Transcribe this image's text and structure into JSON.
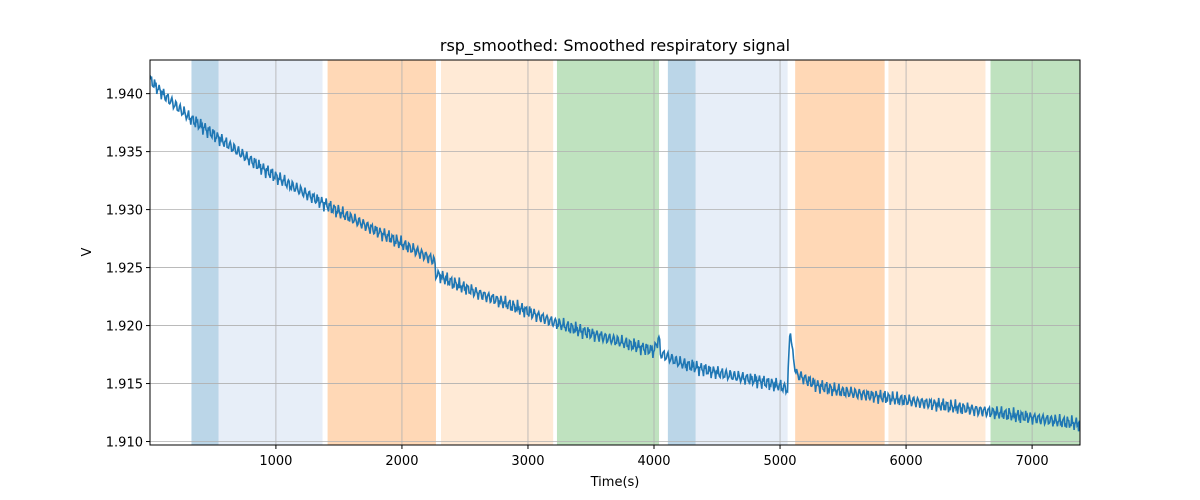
{
  "chart_data": {
    "type": "line",
    "title": "rsp_smoothed: Smoothed respiratory signal",
    "xlabel": "Time(s)",
    "ylabel": "V",
    "xlim": [
      1,
      7380
    ],
    "ylim": [
      1.9097,
      1.9429
    ],
    "xticks": [
      1000,
      2000,
      3000,
      4000,
      5000,
      6000,
      7000
    ],
    "xtick_labels": [
      "1000",
      "2000",
      "3000",
      "4000",
      "5000",
      "6000",
      "7000"
    ],
    "yticks": [
      1.91,
      1.915,
      1.92,
      1.925,
      1.93,
      1.935,
      1.94
    ],
    "ytick_labels": [
      "1.910",
      "1.915",
      "1.920",
      "1.925",
      "1.930",
      "1.935",
      "1.940"
    ],
    "grid": true,
    "series": [
      {
        "color": "#1f77b4",
        "points": [
          [
            1,
            1.9412
          ],
          [
            100,
            1.94
          ],
          [
            200,
            1.939
          ],
          [
            330,
            1.9378
          ],
          [
            500,
            1.9365
          ],
          [
            700,
            1.935
          ],
          [
            900,
            1.9335
          ],
          [
            1100,
            1.9322
          ],
          [
            1300,
            1.931
          ],
          [
            1500,
            1.9298
          ],
          [
            1700,
            1.9287
          ],
          [
            1900,
            1.9276
          ],
          [
            2100,
            1.9265
          ],
          [
            2260,
            1.9256
          ],
          [
            2265,
            1.9245
          ],
          [
            2400,
            1.9237
          ],
          [
            2600,
            1.9228
          ],
          [
            2800,
            1.922
          ],
          [
            3000,
            1.9212
          ],
          [
            3200,
            1.9203
          ],
          [
            3400,
            1.9196
          ],
          [
            3600,
            1.919
          ],
          [
            3800,
            1.9184
          ],
          [
            4000,
            1.9178
          ],
          [
            4040,
            1.919
          ],
          [
            4050,
            1.9176
          ],
          [
            4200,
            1.9168
          ],
          [
            4400,
            1.9162
          ],
          [
            4600,
            1.9157
          ],
          [
            4800,
            1.9153
          ],
          [
            5000,
            1.9148
          ],
          [
            5060,
            1.9145
          ],
          [
            5080,
            1.92
          ],
          [
            5100,
            1.9175
          ],
          [
            5130,
            1.9158
          ],
          [
            5300,
            1.9148
          ],
          [
            5500,
            1.9143
          ],
          [
            5700,
            1.914
          ],
          [
            5900,
            1.9137
          ],
          [
            6100,
            1.9134
          ],
          [
            6300,
            1.9131
          ],
          [
            6500,
            1.9128
          ],
          [
            6700,
            1.9125
          ],
          [
            6900,
            1.9122
          ],
          [
            7100,
            1.9119
          ],
          [
            7380,
            1.9115
          ]
        ]
      }
    ],
    "noise_amplitude": 0.0007,
    "regions": [
      {
        "x0": 330,
        "x1": 545,
        "color": "#1f77b4",
        "opacity": 0.3
      },
      {
        "x0": 545,
        "x1": 1370,
        "color": "#aec7e8",
        "opacity": 0.3
      },
      {
        "x0": 1410,
        "x1": 2270,
        "color": "#ff7f0e",
        "opacity": 0.3
      },
      {
        "x0": 2310,
        "x1": 3200,
        "color": "#ffbb78",
        "opacity": 0.3
      },
      {
        "x0": 3230,
        "x1": 4040,
        "color": "#2ca02c",
        "opacity": 0.3
      },
      {
        "x0": 4110,
        "x1": 4330,
        "color": "#1f77b4",
        "opacity": 0.3
      },
      {
        "x0": 4330,
        "x1": 5060,
        "color": "#aec7e8",
        "opacity": 0.3
      },
      {
        "x0": 5120,
        "x1": 5830,
        "color": "#ff7f0e",
        "opacity": 0.3
      },
      {
        "x0": 5860,
        "x1": 6630,
        "color": "#ffbb78",
        "opacity": 0.3
      },
      {
        "x0": 6670,
        "x1": 7380,
        "color": "#2ca02c",
        "opacity": 0.3
      }
    ]
  }
}
